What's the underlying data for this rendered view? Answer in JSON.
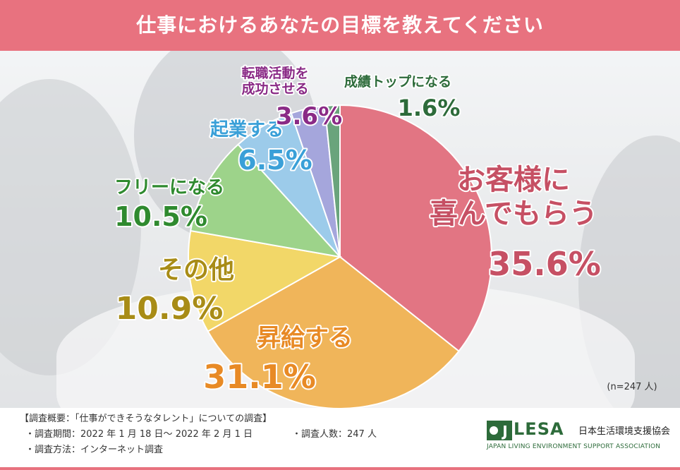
{
  "header": {
    "title": "仕事におけるあなたの目標を教えてください"
  },
  "colors": {
    "header_bg": "#e8727f",
    "logo_green": "#2d6b3a"
  },
  "chart_data": {
    "type": "pie",
    "title": "仕事におけるあなたの目標を教えてください",
    "note": "(n=247 人)",
    "slices": [
      {
        "label_lines": [
          "お客様に",
          "喜んでもらう"
        ],
        "value": 35.6,
        "value_text": "35.6%",
        "color": "#e27583",
        "label_color": "#c65064"
      },
      {
        "label_lines": [
          "昇給する"
        ],
        "value": 31.1,
        "value_text": "31.1%",
        "color": "#f0b55a",
        "label_color": "#e88a25"
      },
      {
        "label_lines": [
          "その他"
        ],
        "value": 10.9,
        "value_text": "10.9%",
        "color": "#f2d768",
        "label_color": "#a88c16"
      },
      {
        "label_lines": [
          "フリーになる"
        ],
        "value": 10.5,
        "value_text": "10.5%",
        "color": "#9dd38a",
        "label_color": "#2f8a2f"
      },
      {
        "label_lines": [
          "起業する"
        ],
        "value": 6.5,
        "value_text": "6.5%",
        "color": "#9ccbea",
        "label_color": "#3aa0d8"
      },
      {
        "label_lines": [
          "転職活動を",
          "成功させる"
        ],
        "value": 3.6,
        "value_text": "3.6%",
        "color": "#a5a6dc",
        "label_color": "#8a2a86"
      },
      {
        "label_lines": [
          "成績トップになる"
        ],
        "value": 1.6,
        "value_text": "1.6%",
        "color": "#6aa47c",
        "label_color": "#2d6b3a"
      }
    ]
  },
  "survey": {
    "summary": "【調査概要：「仕事ができそうなタレント」についての調査】",
    "period": "・調査期間：2022 年 1 月 18 日～ 2022 年 2 月 1 日",
    "method": "・調査方法：インターネット調査",
    "count": "・調査人数：247 人"
  },
  "logo": {
    "mark": "J",
    "name": "LESA",
    "name_jp": "日本生活環境支援協会",
    "name_en": "JAPAN LIVING ENVIRONMENT SUPPORT ASSOCIATION"
  }
}
